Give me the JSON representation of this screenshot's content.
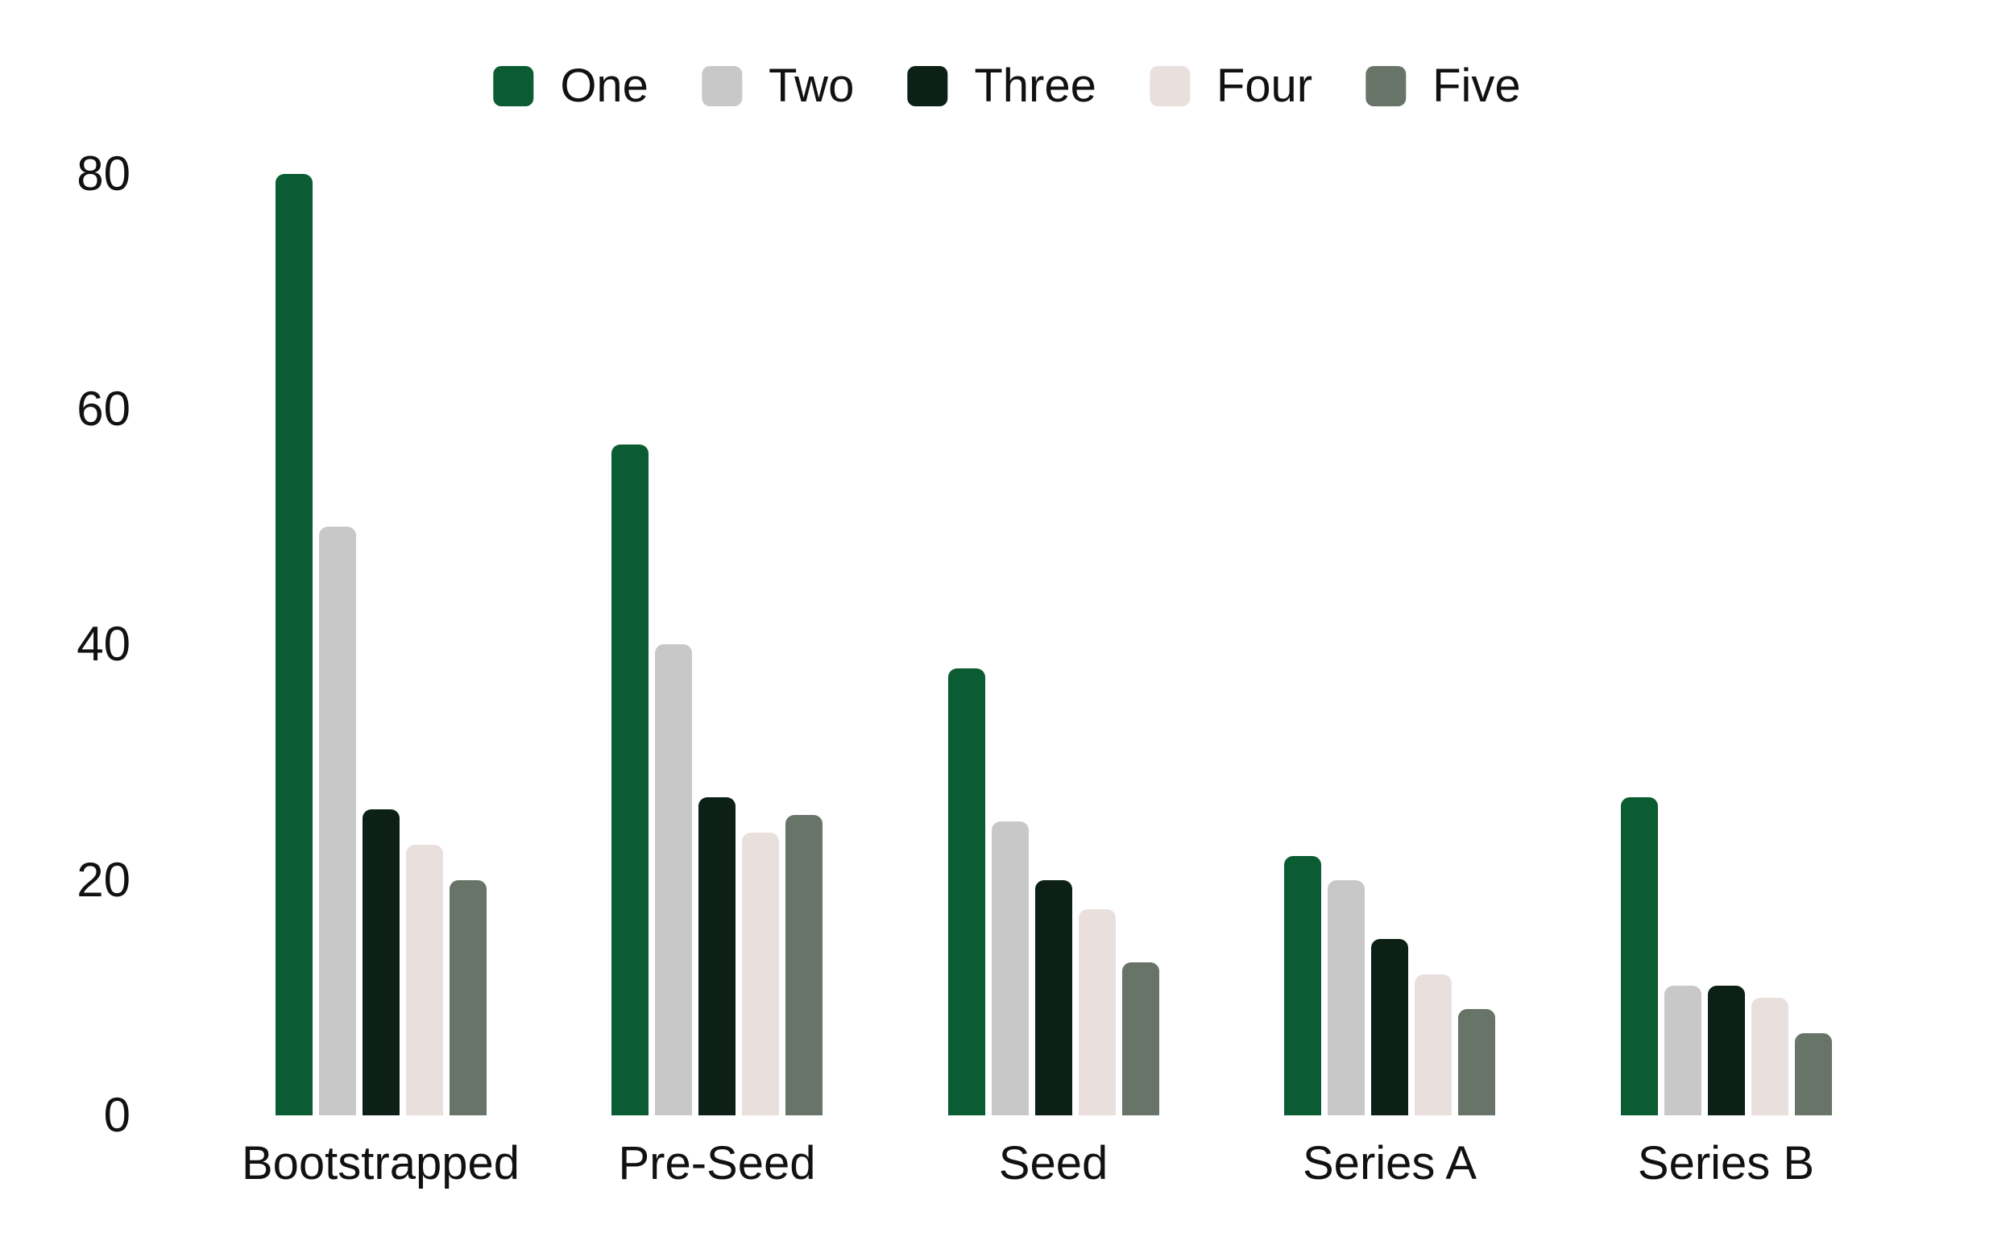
{
  "chart_data": {
    "type": "bar",
    "title": "",
    "xlabel": "",
    "ylabel": "",
    "categories": [
      "Bootstrapped",
      "Pre-Seed",
      "Seed",
      "Series A",
      "Series B"
    ],
    "series": [
      {
        "name": "One",
        "color": "#0b5b33",
        "values": [
          80,
          57,
          38,
          22,
          27
        ]
      },
      {
        "name": "Two",
        "color": "#c8c8c8",
        "values": [
          50,
          40,
          25,
          20,
          11
        ]
      },
      {
        "name": "Three",
        "color": "#0c2016",
        "values": [
          26,
          27,
          20,
          15,
          11
        ]
      },
      {
        "name": "Four",
        "color": "#e9e0dd",
        "values": [
          23,
          24,
          17.5,
          12,
          10
        ]
      },
      {
        "name": "Five",
        "color": "#697468",
        "values": [
          20,
          25.5,
          13,
          9,
          7
        ]
      }
    ],
    "yticks": [
      0,
      20,
      40,
      60,
      80
    ],
    "ylim": [
      0,
      80
    ],
    "grid": false,
    "axis_lines": false,
    "legend_position": "top",
    "text_color": "#111111",
    "background_color": "#ffffff"
  }
}
